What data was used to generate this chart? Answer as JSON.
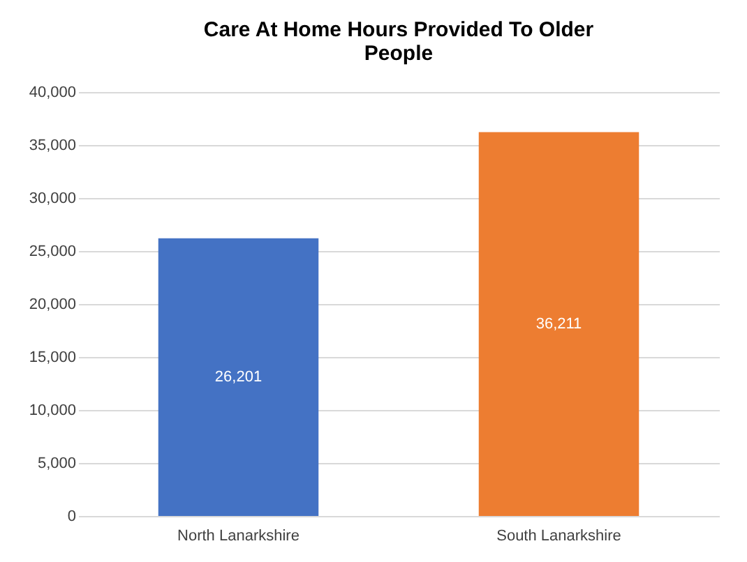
{
  "chart_data": {
    "type": "bar",
    "title": "Care At Home Hours Provided To Older People",
    "categories": [
      "North Lanarkshire",
      "South Lanarkshire"
    ],
    "values": [
      26201,
      36211
    ],
    "value_labels": [
      "26,201",
      "36,211"
    ],
    "colors": [
      "#4472c4",
      "#ed7d31"
    ],
    "ylim": [
      0,
      40000
    ],
    "yticks": [
      {
        "value": 0,
        "label": "0"
      },
      {
        "value": 5000,
        "label": "5,000"
      },
      {
        "value": 10000,
        "label": "10,000"
      },
      {
        "value": 15000,
        "label": "15,000"
      },
      {
        "value": 20000,
        "label": "20,000"
      },
      {
        "value": 25000,
        "label": "25,000"
      },
      {
        "value": 30000,
        "label": "30,000"
      },
      {
        "value": 35000,
        "label": "35,000"
      },
      {
        "value": 40000,
        "label": "40,000"
      }
    ],
    "grid": "y"
  }
}
